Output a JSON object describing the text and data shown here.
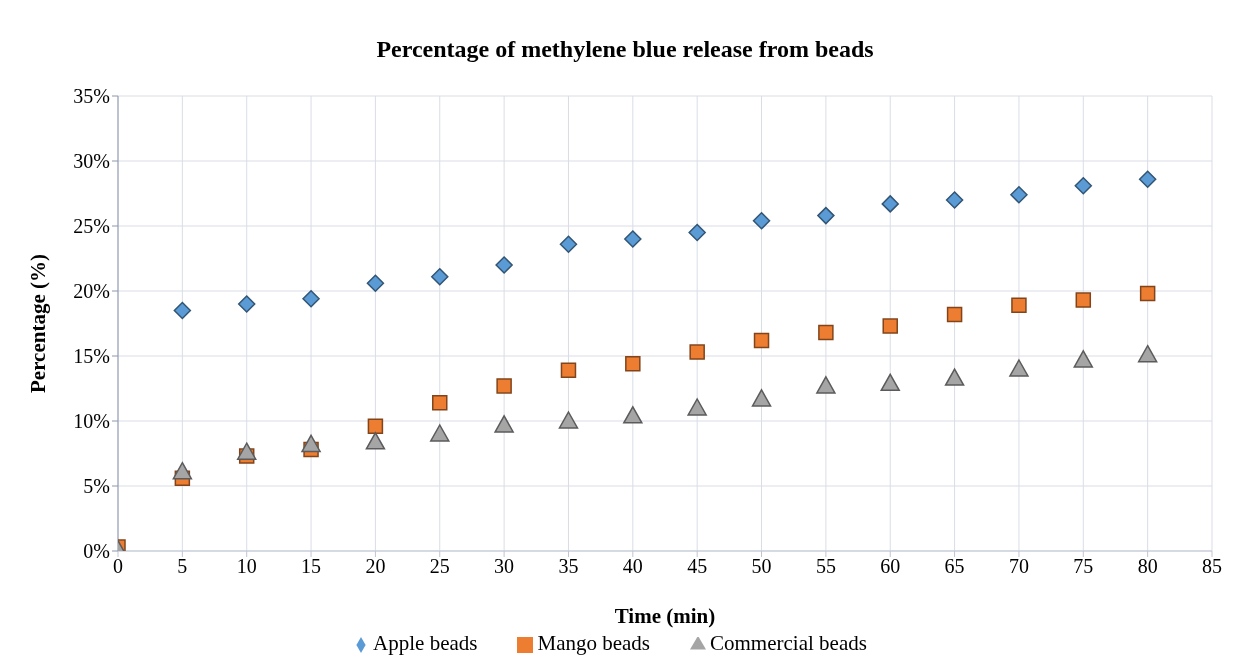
{
  "chart_data": {
    "type": "scatter",
    "title": "Percentage of methylene blue release from beads",
    "xlabel": "Time (min)",
    "ylabel": "Percentage (%)",
    "x": [
      0,
      5,
      10,
      15,
      20,
      25,
      30,
      35,
      40,
      45,
      50,
      55,
      60,
      65,
      70,
      75,
      80
    ],
    "series": [
      {
        "name": "Apple beads",
        "color": "#5b9bd5",
        "marker": "diamond",
        "values": [
          null,
          18.5,
          19.0,
          19.4,
          20.6,
          21.1,
          22.0,
          23.6,
          24.0,
          24.5,
          25.4,
          25.8,
          26.7,
          27.0,
          27.4,
          28.1,
          28.6
        ]
      },
      {
        "name": "Mango beads",
        "color": "#ed7d31",
        "marker": "square",
        "values": [
          0.3,
          5.6,
          7.3,
          7.8,
          9.6,
          11.4,
          12.7,
          13.9,
          14.4,
          15.3,
          16.2,
          16.8,
          17.3,
          18.2,
          18.9,
          19.3,
          19.8
        ]
      },
      {
        "name": "Commercial beads",
        "color": "#a5a5a5",
        "marker": "triangle",
        "values": [
          0.1,
          6.1,
          7.6,
          8.2,
          8.4,
          9.0,
          9.7,
          10.0,
          10.4,
          11.0,
          11.7,
          12.7,
          12.9,
          13.3,
          14.0,
          14.7,
          15.1
        ]
      }
    ],
    "xlim": [
      0,
      85
    ],
    "xticks": [
      0,
      5,
      10,
      15,
      20,
      25,
      30,
      35,
      40,
      45,
      50,
      55,
      60,
      65,
      70,
      75,
      80,
      85
    ],
    "ylim": [
      0,
      35
    ],
    "yticks": [
      {
        "value": 0,
        "label": "0%"
      },
      {
        "value": 5,
        "label": "5%"
      },
      {
        "value": 10,
        "label": "10%"
      },
      {
        "value": 15,
        "label": "15%"
      },
      {
        "value": 20,
        "label": "20%"
      },
      {
        "value": 25,
        "label": "25%"
      },
      {
        "value": 30,
        "label": "30%"
      },
      {
        "value": 35,
        "label": "35%"
      }
    ],
    "grid": true,
    "legend": "bottom"
  }
}
